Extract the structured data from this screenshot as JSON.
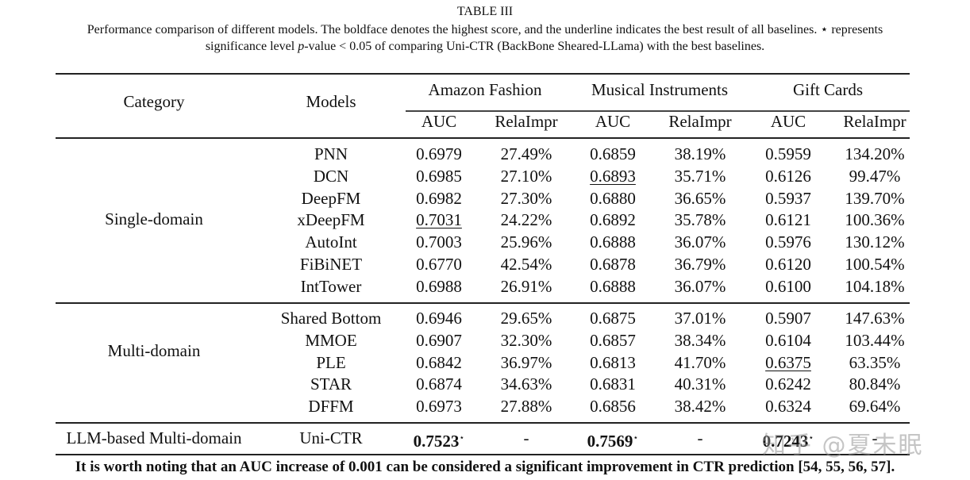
{
  "caption": {
    "title": "TABLE III",
    "line1": "Performance comparison of different models. The boldface denotes the highest score, and the underline indicates the best result of all baselines. ⋆ represents",
    "line2_pre": "significance level ",
    "line2_italic": "p",
    "line2_post": "-value < 0.05 of comparing Uni-CTR (BackBone Sheared-LLama) with the best baselines."
  },
  "header": {
    "category": "Category",
    "models": "Models",
    "datasets": [
      "Amazon Fashion",
      "Musical Instruments",
      "Gift Cards"
    ],
    "metrics": [
      "AUC",
      "RelaImpr",
      "AUC",
      "RelaImpr",
      "AUC",
      "RelaImpr"
    ]
  },
  "groups": [
    {
      "category": "Single-domain",
      "rows": [
        {
          "model": "PNN",
          "values": [
            "0.6979",
            "27.49%",
            "0.6859",
            "38.19%",
            "0.5959",
            "134.20%"
          ]
        },
        {
          "model": "DCN",
          "values": [
            "0.6985",
            "27.10%",
            "0.6893",
            "35.71%",
            "0.6126",
            "99.47%"
          ]
        },
        {
          "model": "DeepFM",
          "values": [
            "0.6982",
            "27.30%",
            "0.6880",
            "36.65%",
            "0.5937",
            "139.70%"
          ]
        },
        {
          "model": "xDeepFM",
          "values": [
            "0.7031",
            "24.22%",
            "0.6892",
            "35.78%",
            "0.6121",
            "100.36%"
          ]
        },
        {
          "model": "AutoInt",
          "values": [
            "0.7003",
            "25.96%",
            "0.6888",
            "36.07%",
            "0.5976",
            "130.12%"
          ]
        },
        {
          "model": "FiBiNET",
          "values": [
            "0.6770",
            "42.54%",
            "0.6878",
            "36.79%",
            "0.6120",
            "100.54%"
          ]
        },
        {
          "model": "IntTower",
          "values": [
            "0.6988",
            "26.91%",
            "0.6888",
            "36.07%",
            "0.6100",
            "104.18%"
          ]
        }
      ]
    },
    {
      "category": "Multi-domain",
      "rows": [
        {
          "model": "Shared Bottom",
          "values": [
            "0.6946",
            "29.65%",
            "0.6875",
            "37.01%",
            "0.5907",
            "147.63%"
          ]
        },
        {
          "model": "MMOE",
          "values": [
            "0.6907",
            "32.30%",
            "0.6857",
            "38.34%",
            "0.6104",
            "103.44%"
          ]
        },
        {
          "model": "PLE",
          "values": [
            "0.6842",
            "36.97%",
            "0.6813",
            "41.70%",
            "0.6375",
            "63.35%"
          ]
        },
        {
          "model": "STAR",
          "values": [
            "0.6874",
            "34.63%",
            "0.6831",
            "40.31%",
            "0.6242",
            "80.84%"
          ]
        },
        {
          "model": "DFFM",
          "values": [
            "0.6973",
            "27.88%",
            "0.6856",
            "38.42%",
            "0.6324",
            "69.64%"
          ]
        }
      ]
    },
    {
      "category": "LLM-based Multi-domain",
      "rows": [
        {
          "model": "Uni-CTR",
          "values": [
            "0.7523",
            "-",
            "0.7569",
            "-",
            "0.7243",
            "-"
          ]
        }
      ]
    }
  ],
  "significance_marker": "⋆",
  "watermark": "知乎 @夏未眠",
  "footnote": "It is worth noting that an AUC increase of 0.001 can be considered a significant improvement in CTR prediction [54, 55, 56, 57]."
}
